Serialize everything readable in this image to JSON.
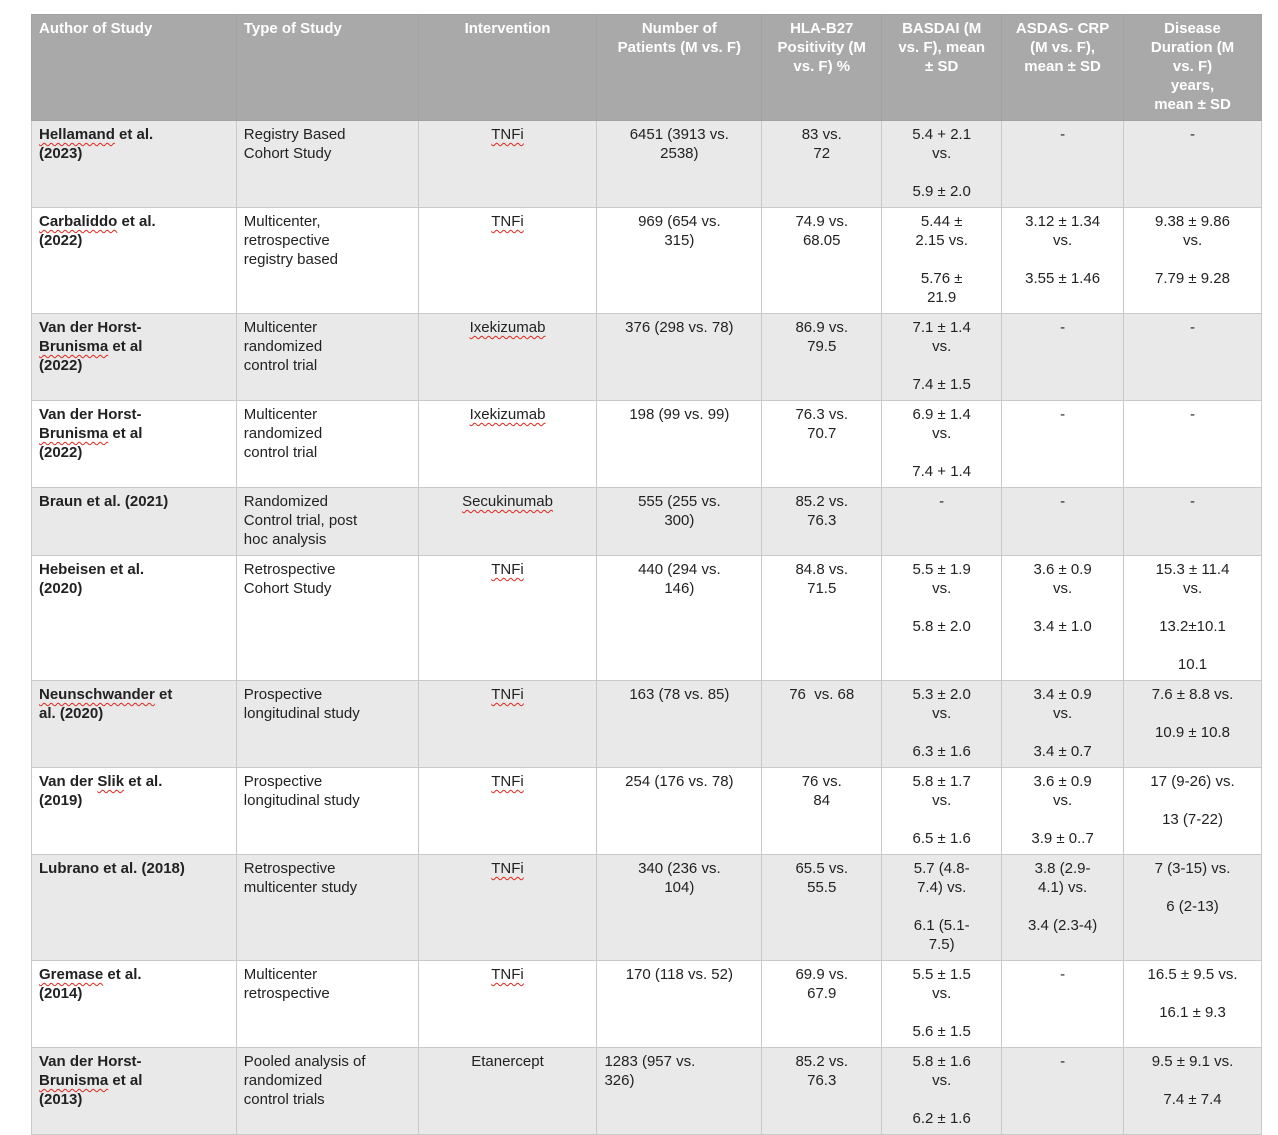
{
  "table": {
    "header_bg": "#a9a9a9",
    "header_text_color": "#ffffff",
    "stripe_bg": "#e9e9e9",
    "border_color": "#c9c9c9",
    "squiggle_color": "#e0261c",
    "columns": [
      {
        "key": "author",
        "label_lines": [
          "Author of Study"
        ],
        "align": "left",
        "width": "16.65%"
      },
      {
        "key": "type",
        "label_lines": [
          "Type of Study"
        ],
        "align": "left",
        "width": "14.78%"
      },
      {
        "key": "intervention",
        "label_lines": [
          "Intervention"
        ],
        "align": "center",
        "width": "14.54%"
      },
      {
        "key": "patients",
        "label_lines": [
          "Number of",
          "Patients (M vs. F)"
        ],
        "align": "center",
        "width": "13.40%"
      },
      {
        "key": "hla",
        "label_lines": [
          "HLA-B27",
          "Positivity (M",
          "vs. F) %"
        ],
        "align": "center",
        "width": "9.75%"
      },
      {
        "key": "basdai",
        "label_lines": [
          "BASDAI (M",
          "vs. F), mean",
          "± SD"
        ],
        "align": "center",
        "width": "9.75%"
      },
      {
        "key": "asdas",
        "label_lines": [
          "ASDAS- CRP",
          "(M vs. F),",
          "mean ± SD"
        ],
        "align": "center",
        "width": "9.91%"
      },
      {
        "key": "duration",
        "label_lines": [
          "Disease",
          "Duration (M",
          "vs. F)",
          "years,",
          "mean ± SD"
        ],
        "align": "center",
        "width": "11.21%"
      }
    ],
    "rows": [
      {
        "author": [
          "Hellamand et al.",
          "(2023)"
        ],
        "author_misspelled": [
          "Hellamand"
        ],
        "type": [
          "Registry Based",
          "Cohort Study"
        ],
        "intervention": "TNFi",
        "intervention_misspelled": true,
        "patients": [
          "6451 (3913 vs.",
          "2538)"
        ],
        "hla": [
          "83 vs.",
          "72"
        ],
        "basdai": [
          "5.4 + 2.1",
          "vs.",
          "",
          "5.9 ± 2.0"
        ],
        "asdas": [
          "-"
        ],
        "duration": [
          "-"
        ]
      },
      {
        "author": [
          "Carbaliddo et al.",
          "(2022)"
        ],
        "author_misspelled": [
          "Carbaliddo"
        ],
        "type": [
          "Multicenter,",
          "retrospective",
          "registry based"
        ],
        "intervention": "TNFi",
        "intervention_misspelled": true,
        "patients": [
          "969 (654 vs.",
          "315)"
        ],
        "hla": [
          "74.9 vs.",
          "68.05"
        ],
        "basdai": [
          "5.44 ±",
          "2.15 vs.",
          "",
          "5.76 ±",
          "21.9"
        ],
        "asdas": [
          "3.12 ± 1.34",
          "vs.",
          "",
          "3.55 ± 1.46"
        ],
        "duration": [
          "9.38 ± 9.86",
          "vs.",
          "",
          "7.79 ± 9.28"
        ]
      },
      {
        "author": [
          "Van der Horst-",
          "Brunisma et al",
          "(2022)"
        ],
        "author_misspelled": [
          "Brunisma"
        ],
        "type": [
          "Multicenter",
          "randomized",
          "control trial"
        ],
        "intervention": "Ixekizumab",
        "intervention_misspelled": true,
        "patients": [
          "376 (298 vs. 78)"
        ],
        "hla": [
          "86.9 vs.",
          "79.5"
        ],
        "basdai": [
          "7.1 ± 1.4",
          "vs.",
          "",
          "7.4 ± 1.5"
        ],
        "asdas": [
          "-"
        ],
        "duration": [
          "-"
        ]
      },
      {
        "author": [
          "Van der Horst-",
          "Brunisma et al",
          "(2022)"
        ],
        "author_misspelled": [
          "Brunisma"
        ],
        "type": [
          "Multicenter",
          "randomized",
          "control trial"
        ],
        "intervention": "Ixekizumab",
        "intervention_misspelled": true,
        "patients": [
          "198 (99 vs. 99)"
        ],
        "hla": [
          "76.3 vs.",
          "70.7"
        ],
        "basdai": [
          "6.9 ± 1.4",
          "vs.",
          "",
          "7.4 + 1.4"
        ],
        "asdas": [
          "-"
        ],
        "duration": [
          "-"
        ]
      },
      {
        "author": [
          "Braun et al. (2021)"
        ],
        "author_misspelled": [],
        "type": [
          "Randomized",
          "Control trial, post",
          "hoc analysis"
        ],
        "intervention": "Secukinumab",
        "intervention_misspelled": true,
        "patients": [
          "555 (255 vs.",
          "300)"
        ],
        "hla": [
          "85.2 vs.",
          "76.3"
        ],
        "basdai": [
          "-"
        ],
        "asdas": [
          "-"
        ],
        "duration": [
          "-"
        ]
      },
      {
        "author": [
          "Hebeisen et al.",
          "(2020)"
        ],
        "author_misspelled": [],
        "type": [
          "Retrospective",
          "Cohort Study"
        ],
        "intervention": "TNFi",
        "intervention_misspelled": true,
        "patients": [
          "440 (294 vs.",
          "146)"
        ],
        "hla": [
          "84.8 vs.",
          "71.5"
        ],
        "basdai": [
          "5.5 ± 1.9",
          "vs.",
          "",
          "5.8 ± 2.0"
        ],
        "asdas": [
          "3.6 ± 0.9",
          "vs.",
          "",
          "3.4 ± 1.0"
        ],
        "duration": [
          "15.3 ± 11.4",
          "vs.",
          "",
          "13.2±10.1",
          "",
          "10.1"
        ]
      },
      {
        "author": [
          "Neunschwander et",
          "al. (2020)"
        ],
        "author_misspelled": [
          "Neunschwander"
        ],
        "type": [
          "Prospective",
          "longitudinal study"
        ],
        "intervention": "TNFi",
        "intervention_misspelled": true,
        "patients": [
          "163 (78 vs. 85)"
        ],
        "hla": [
          "76  vs. 68"
        ],
        "basdai": [
          "5.3 ± 2.0",
          "vs.",
          "",
          "6.3 ± 1.6"
        ],
        "asdas": [
          "3.4 ± 0.9",
          "vs.",
          "",
          "3.4 ± 0.7"
        ],
        "duration": [
          "7.6 ± 8.8 vs.",
          "",
          "10.9 ± 10.8"
        ]
      },
      {
        "author": [
          "Van der Slik et al.",
          "(2019)"
        ],
        "author_misspelled": [
          "Slik"
        ],
        "type": [
          "Prospective",
          "longitudinal study"
        ],
        "intervention": "TNFi",
        "intervention_misspelled": true,
        "patients": [
          "254 (176 vs. 78)"
        ],
        "hla": [
          "76 vs.",
          "84"
        ],
        "basdai": [
          "5.8 ± 1.7",
          "vs.",
          "",
          "6.5 ± 1.6"
        ],
        "asdas": [
          "3.6 ± 0.9",
          "vs.",
          "",
          "3.9 ± 0..7"
        ],
        "duration": [
          "17 (9-26) vs.",
          "",
          "13 (7-22)"
        ]
      },
      {
        "author": [
          "Lubrano et al. (2018)"
        ],
        "author_misspelled": [],
        "type": [
          "Retrospective",
          "multicenter study"
        ],
        "intervention": "TNFi",
        "intervention_misspelled": true,
        "patients": [
          "340 (236 vs.",
          "104)"
        ],
        "hla": [
          "65.5 vs.",
          "55.5"
        ],
        "basdai": [
          "5.7 (4.8-",
          "7.4) vs.",
          "",
          "6.1 (5.1-",
          "7.5)"
        ],
        "asdas": [
          "3.8 (2.9-",
          "4.1) vs.",
          "",
          "3.4 (2.3-4)"
        ],
        "duration": [
          "7 (3-15) vs.",
          "",
          "6 (2-13)"
        ]
      },
      {
        "author": [
          "Gremase et al.",
          "(2014)"
        ],
        "author_misspelled": [
          "Gremase"
        ],
        "type": [
          "Multicenter",
          "retrospective"
        ],
        "intervention": "TNFi",
        "intervention_misspelled": true,
        "patients": [
          "170 (118 vs. 52)"
        ],
        "hla": [
          "69.9 vs.",
          "67.9"
        ],
        "basdai": [
          "5.5 ± 1.5",
          "vs.",
          "",
          "5.6 ± 1.5"
        ],
        "asdas": [
          "-"
        ],
        "duration": [
          "16.5 ± 9.5 vs.",
          "",
          "16.1 ± 9.3"
        ]
      },
      {
        "author": [
          "Van der Horst-",
          "Brunisma et al",
          "(2013)"
        ],
        "author_misspelled": [
          "Brunisma"
        ],
        "type": [
          "Pooled analysis of",
          "randomized",
          "control trials"
        ],
        "intervention": "Etanercept",
        "intervention_misspelled": false,
        "patients": [
          "1283 (957 vs.",
          "326)"
        ],
        "patients_align": "left",
        "hla": [
          "85.2 vs.",
          "76.3"
        ],
        "basdai": [
          "5.8 ± 1.6",
          "vs.",
          "",
          "6.2 ± 1.6"
        ],
        "asdas": [
          "-"
        ],
        "duration": [
          "9.5 ± 9.1 vs.",
          "",
          "7.4 ± 7.4"
        ]
      }
    ]
  }
}
